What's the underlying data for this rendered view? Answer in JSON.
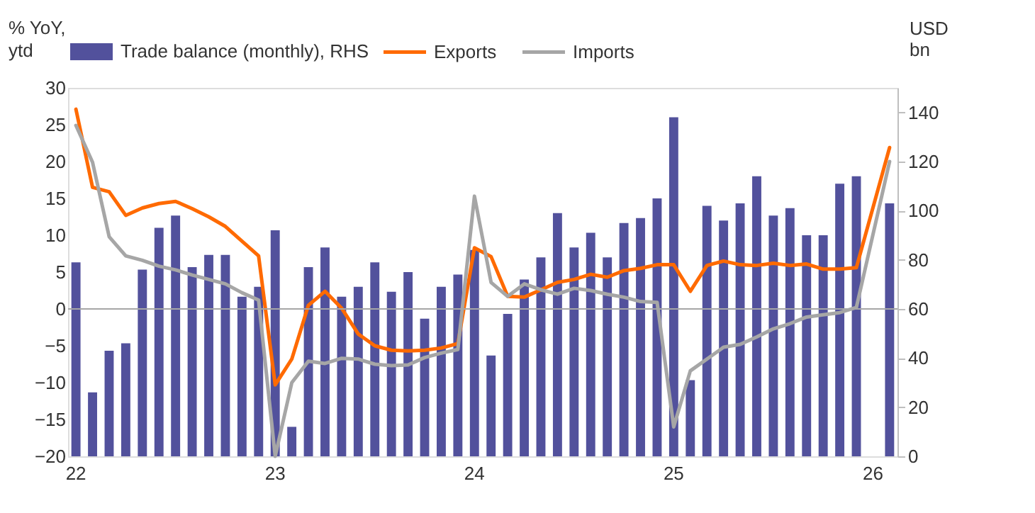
{
  "chart_data": {
    "type": "bar",
    "ylabel": "% YoY, ytd",
    "y2label": "USD bn",
    "categories": [
      "22",
      null,
      null,
      null,
      null,
      null,
      null,
      null,
      null,
      null,
      null,
      null,
      "23",
      null,
      null,
      null,
      null,
      null,
      null,
      null,
      null,
      null,
      null,
      null,
      "24",
      null,
      null,
      null,
      null,
      null,
      null,
      null,
      null,
      null,
      null,
      null,
      "25",
      null,
      null,
      null,
      null,
      null,
      null,
      null,
      null,
      null,
      null,
      null,
      "26",
      null
    ],
    "series": [
      {
        "name": "Trade balance (monthly), RHS",
        "type": "bar",
        "axis": "y2",
        "color": "#52519c",
        "values": [
          79,
          26,
          43,
          46,
          76,
          93,
          98,
          77,
          82,
          82,
          65,
          69,
          92,
          12,
          77,
          85,
          65,
          69,
          79,
          67,
          75,
          56,
          69,
          74,
          84,
          41,
          58,
          72,
          81,
          99,
          85,
          91,
          81,
          95,
          97,
          105,
          138,
          31,
          102,
          96,
          103,
          114,
          98,
          101,
          90,
          90,
          111,
          114,
          null,
          103
        ]
      },
      {
        "name": "Exports",
        "type": "line",
        "color": "#ff6a00",
        "values": [
          27.1,
          16.5,
          15.9,
          12.7,
          13.7,
          14.3,
          14.6,
          13.6,
          12.5,
          11.2,
          9.2,
          7.2,
          -10.3,
          -6.8,
          0.5,
          2.4,
          0.1,
          -3.4,
          -5.0,
          -5.6,
          -5.7,
          -5.6,
          -5.3,
          -4.7,
          8.3,
          7.1,
          1.7,
          1.6,
          2.6,
          3.6,
          4.0,
          4.7,
          4.3,
          5.2,
          5.5,
          6.0,
          6.0,
          2.4,
          5.9,
          6.5,
          6.0,
          5.9,
          6.2,
          5.9,
          6.1,
          5.4,
          5.4,
          5.6,
          null,
          21.9
        ]
      },
      {
        "name": "Imports",
        "type": "line",
        "color": "#a6a6a6",
        "values": [
          24.9,
          19.9,
          9.8,
          7.2,
          6.6,
          5.8,
          5.3,
          4.6,
          4.0,
          3.4,
          2.2,
          1.2,
          -20,
          -10,
          -7.1,
          -7.4,
          -6.7,
          -6.8,
          -7.5,
          -7.7,
          -7.6,
          -6.6,
          -6.0,
          -5.5,
          15.3,
          3.6,
          1.7,
          3.4,
          2.6,
          2.0,
          2.8,
          2.5,
          2.0,
          1.6,
          1.0,
          0.9,
          -16.0,
          -8.4,
          -6.8,
          -5.2,
          -4.8,
          -3.8,
          -2.7,
          -2.0,
          -1.1,
          -0.8,
          -0.5,
          0.2,
          null,
          20.0
        ]
      }
    ],
    "ylim": [
      -20,
      30
    ],
    "yticks": [
      -20,
      -15,
      -10,
      -5,
      0,
      5,
      10,
      15,
      20,
      25,
      30
    ],
    "y2lim": [
      0,
      150
    ],
    "y2ticks": [
      0,
      20,
      40,
      60,
      80,
      100,
      120,
      140
    ],
    "ref_lines": [
      {
        "axis": "y",
        "value": 0,
        "color": "#a6a6a6"
      }
    ],
    "legend": "top",
    "grid": false
  }
}
